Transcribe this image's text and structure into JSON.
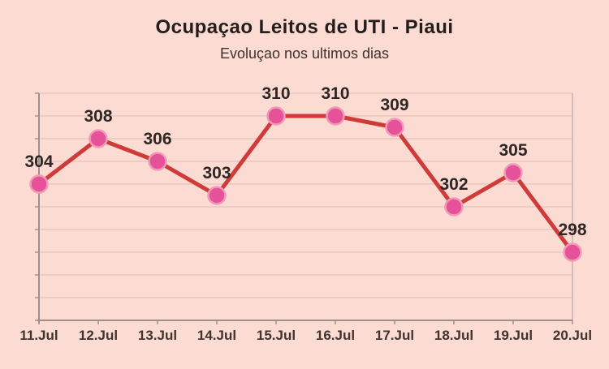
{
  "chart_data": {
    "type": "line",
    "title": "Ocupaçao Leitos de UTI - Piaui",
    "subtitle": "Evoluçao nos ultimos dias",
    "categories": [
      "11.Jul",
      "12.Jul",
      "13.Jul",
      "14.Jul",
      "15.Jul",
      "16.Jul",
      "17.Jul",
      "18.Jul",
      "19.Jul",
      "20.Jul"
    ],
    "values": [
      304,
      308,
      306,
      303,
      310,
      310,
      309,
      302,
      305,
      298
    ],
    "xlabel": "",
    "ylabel": "",
    "ylim": [
      292,
      312
    ],
    "gridline_step": 2,
    "grid": true,
    "y_tick_labels_visible": false,
    "data_labels_visible": true,
    "legend": "none",
    "colors": {
      "background": "#fbdbd2",
      "gridline": "#e9c6c0",
      "axis": "#9e918d",
      "right_border": "#c9b2ac",
      "line": "#cf3b38",
      "marker_fill": "#e6529a",
      "marker_edge": "#f09ab8",
      "title_text": "#241d1d",
      "subtitle_text": "#3e322f",
      "data_label_text": "#2e2524",
      "x_label_text": "#41332f"
    }
  }
}
